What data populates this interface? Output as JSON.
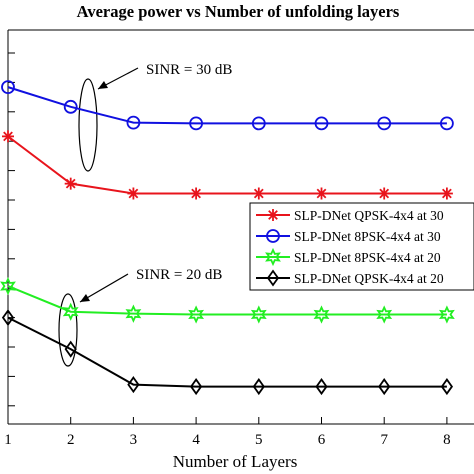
{
  "chart_data": {
    "type": "line",
    "title": "Average power vs Number of unfolding layers",
    "xlabel": "Number of Layers",
    "ylabel": "",
    "x": [
      1,
      2,
      3,
      4,
      5,
      6,
      7,
      8
    ],
    "xlim": [
      1,
      8.6
    ],
    "ylim": [
      0,
      1
    ],
    "y_scale": "normalized (no y tick labels visible)",
    "grid": false,
    "legend_position": "right, middle",
    "series": [
      {
        "name": "SLP-DNet QPSK-4x4 at 30",
        "color": "#e8141c",
        "marker": "asterisk",
        "values": [
          0.73,
          0.61,
          0.585,
          0.585,
          0.585,
          0.585,
          0.585,
          0.585
        ]
      },
      {
        "name": "SLP-DNet 8PSK-4x4 at 30",
        "color": "#1010e0",
        "marker": "circle",
        "values": [
          0.855,
          0.805,
          0.765,
          0.763,
          0.763,
          0.763,
          0.763,
          0.763
        ]
      },
      {
        "name": "SLP-DNet 8PSK-4x4 at 20",
        "color": "#22ee22",
        "marker": "hexagram",
        "values": [
          0.35,
          0.285,
          0.28,
          0.278,
          0.278,
          0.278,
          0.278,
          0.278
        ]
      },
      {
        "name": "SLP-DNet QPSK-4x4 at 20",
        "color": "#000000",
        "marker": "diamond",
        "values": [
          0.27,
          0.19,
          0.1,
          0.095,
          0.095,
          0.095,
          0.095,
          0.095
        ]
      }
    ],
    "annotations": [
      {
        "text": "SINR = 30 dB"
      },
      {
        "text": "SINR = 20 dB"
      }
    ]
  }
}
